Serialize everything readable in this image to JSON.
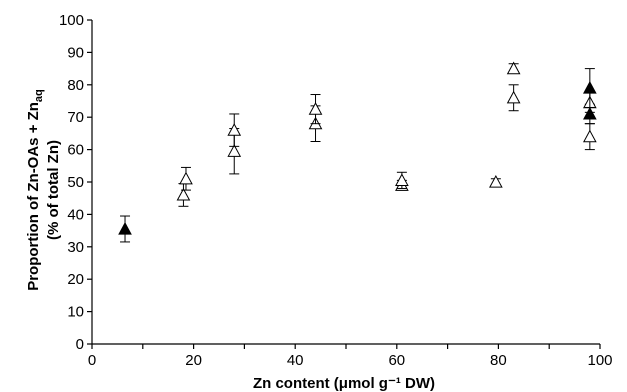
{
  "chart_data": {
    "type": "scatter",
    "xlabel": "Zn content (μmol g⁻¹ DW)",
    "ylabel_line1": "Proportion of Zn-OAs + Zn",
    "ylabel_subscript": "aq",
    "ylabel_line2": "(% of total Zn)",
    "xlim": [
      0,
      100
    ],
    "ylim": [
      0,
      100
    ],
    "x_ticks": [
      0,
      20,
      40,
      60,
      80,
      100
    ],
    "y_ticks": [
      0,
      10,
      20,
      30,
      40,
      50,
      60,
      70,
      80,
      90,
      100
    ],
    "grid": false,
    "points": [
      {
        "x": 6.5,
        "y": 35.5,
        "err": 4,
        "filled": true
      },
      {
        "x": 18,
        "y": 46,
        "err": 3.5,
        "filled": false
      },
      {
        "x": 18.5,
        "y": 51,
        "err": 3.5,
        "filled": false
      },
      {
        "x": 28,
        "y": 59.5,
        "err": 7,
        "filled": false
      },
      {
        "x": 28,
        "y": 66,
        "err": 5,
        "filled": false
      },
      {
        "x": 44,
        "y": 68,
        "err": 5.5,
        "filled": false
      },
      {
        "x": 44,
        "y": 72.5,
        "err": 4.5,
        "filled": false
      },
      {
        "x": 61,
        "y": 49,
        "err": 1.5,
        "filled": false
      },
      {
        "x": 61,
        "y": 50.5,
        "err": 2.5,
        "filled": false
      },
      {
        "x": 79.5,
        "y": 50,
        "err": 1,
        "filled": false
      },
      {
        "x": 83,
        "y": 76,
        "err": 4,
        "filled": false
      },
      {
        "x": 83,
        "y": 85,
        "err": 1.5,
        "filled": false
      },
      {
        "x": 98,
        "y": 64,
        "err": 4,
        "filled": false
      },
      {
        "x": 98,
        "y": 71,
        "err": 3,
        "filled": true
      },
      {
        "x": 98,
        "y": 74.5,
        "err": 3,
        "filled": false
      },
      {
        "x": 98,
        "y": 79,
        "err": 6,
        "filled": true
      }
    ]
  }
}
